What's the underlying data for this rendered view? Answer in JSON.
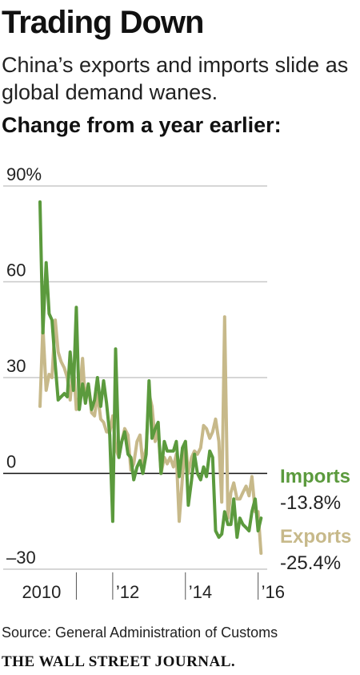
{
  "header": {
    "title": "Trading Down",
    "subtitle": "China’s exports and imports slide as global demand wanes.",
    "subtitle2": "Change from a year earlier:"
  },
  "footer": {
    "source": "Source: General Administration of Customs",
    "logo": "THE WALL STREET JOURNAL."
  },
  "chart_data": {
    "type": "line",
    "xlabel": "",
    "ylabel": "",
    "xlim": [
      2010.0,
      2016.25
    ],
    "ylim": [
      -30,
      90
    ],
    "y_ticks": [
      {
        "value": 90,
        "label": "90%"
      },
      {
        "value": 60,
        "label": "60"
      },
      {
        "value": 30,
        "label": "30"
      },
      {
        "value": 0,
        "label": "0"
      },
      {
        "value": -30,
        "label": "–30"
      }
    ],
    "x_ticks": [
      {
        "value": 2011,
        "label": "2010"
      },
      {
        "value": 2012,
        "label": "’12"
      },
      {
        "value": 2014,
        "label": "’14"
      },
      {
        "value": 2016,
        "label": "’16"
      }
    ],
    "grid": true,
    "end_labels": [
      {
        "series": "Imports",
        "name": "Imports",
        "value_label": "-13.8%"
      },
      {
        "series": "Exports",
        "name": "Exports",
        "value_label": "-25.4%"
      }
    ],
    "colors": {
      "Imports": "#5b9a3d",
      "Exports": "#c7b98a",
      "zero": "#111111",
      "grid": "#c8c8c8"
    },
    "x": [
      2010.0,
      2010.08,
      2010.17,
      2010.25,
      2010.33,
      2010.42,
      2010.5,
      2010.58,
      2010.67,
      2010.75,
      2010.83,
      2010.92,
      2011.0,
      2011.08,
      2011.17,
      2011.25,
      2011.33,
      2011.42,
      2011.5,
      2011.58,
      2011.67,
      2011.75,
      2011.83,
      2011.92,
      2012.0,
      2012.08,
      2012.17,
      2012.25,
      2012.33,
      2012.42,
      2012.5,
      2012.58,
      2012.67,
      2012.75,
      2012.83,
      2012.92,
      2013.0,
      2013.08,
      2013.17,
      2013.25,
      2013.33,
      2013.42,
      2013.5,
      2013.58,
      2013.67,
      2013.75,
      2013.83,
      2013.92,
      2014.0,
      2014.08,
      2014.17,
      2014.25,
      2014.33,
      2014.42,
      2014.5,
      2014.58,
      2014.67,
      2014.75,
      2014.83,
      2014.92,
      2015.0,
      2015.08,
      2015.17,
      2015.25,
      2015.33,
      2015.42,
      2015.5,
      2015.58,
      2015.67,
      2015.75,
      2015.83,
      2015.92,
      2016.0,
      2016.08
    ],
    "series": [
      {
        "name": "Imports",
        "values": [
          85,
          44,
          66,
          50,
          48,
          34,
          23,
          24,
          25,
          24,
          38,
          26,
          52,
          20,
          28,
          22,
          28,
          20,
          23,
          30,
          21,
          29,
          22,
          12,
          -15,
          39,
          5,
          10,
          13,
          6,
          5,
          -2,
          2,
          4,
          0,
          6,
          29,
          11,
          14,
          16,
          0,
          10,
          7,
          7,
          7,
          10,
          -1,
          8,
          10,
          -10,
          -2,
          6,
          0,
          -2,
          2,
          -1,
          7,
          5,
          -18,
          -20,
          -19,
          -12,
          -16,
          -16,
          -8,
          -20,
          -14,
          -16,
          -17,
          -18,
          -12,
          -8,
          -18,
          -14
        ]
      },
      {
        "name": "Exports",
        "values": [
          21,
          46,
          26,
          31,
          30,
          48,
          38,
          35,
          33,
          30,
          23,
          34,
          20,
          24,
          36,
          22,
          28,
          19,
          18,
          25,
          17,
          16,
          13,
          13,
          18,
          8,
          5,
          10,
          14,
          12,
          1,
          3,
          10,
          12,
          3,
          8,
          25,
          21,
          10,
          14,
          0,
          5,
          3,
          5,
          2,
          6,
          -15,
          -1,
          10,
          0,
          5,
          7,
          6,
          8,
          15,
          14,
          11,
          13,
          17,
          10,
          -9,
          49,
          -14,
          -6,
          -3,
          -8,
          -8,
          -6,
          -4,
          -7,
          -1,
          -12,
          -12,
          -25
        ]
      }
    ]
  }
}
